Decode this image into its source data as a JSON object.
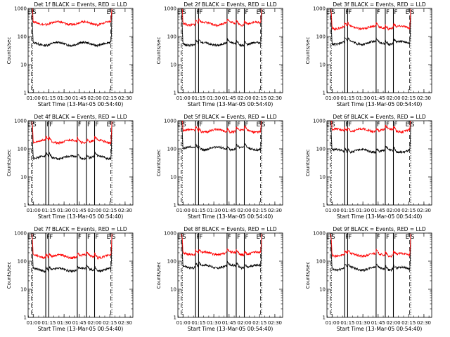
{
  "chart_data": [
    {
      "type": "line",
      "title": "Det 1f BLACK = Events, RED = LLD",
      "xlabel": "Start Time (13-Mar-05 00:54:40)",
      "ylabel": "Counts/sec",
      "x_ticks": [
        "01:00",
        "01:15",
        "01:30",
        "01:45",
        "02:00",
        "02:15",
        "02:30"
      ],
      "y_ticks": [
        "1",
        "10",
        "100",
        "1000"
      ],
      "y_scale": "log",
      "ylim": [
        1,
        1000
      ],
      "xlim": [
        "00:54:40",
        "02:37:40"
      ],
      "markers": [
        {
          "label": "E",
          "time": "00:58"
        },
        {
          "label": "S",
          "time": "00:59"
        },
        {
          "label": "E",
          "time": "02:16"
        },
        {
          "label": "S",
          "time": "02:17"
        }
      ],
      "series": [
        {
          "name": "Events",
          "color": "#000000",
          "level": 55
        },
        {
          "name": "LLD",
          "color": "#ff0000",
          "level": 300
        }
      ]
    },
    {
      "type": "line",
      "title": "Det 2f BLACK = Events, RED = LLD",
      "xlabel": "Start Time (13-Mar-05 00:54:40)",
      "ylabel": "Counts/sec",
      "x_ticks": [
        "01:00",
        "01:15",
        "01:30",
        "01:45",
        "02:00",
        "02:15",
        "02:30"
      ],
      "y_ticks": [
        "1",
        "10",
        "100",
        "1000"
      ],
      "y_scale": "log",
      "ylim": [
        1,
        1000
      ],
      "xlim": [
        "00:54:40",
        "02:37:40"
      ],
      "markers": [
        {
          "label": "E",
          "time": "00:58"
        },
        {
          "label": "S",
          "time": "00:59"
        },
        {
          "label": "F",
          "time": "01:12"
        },
        {
          "label": "F",
          "time": "01:15"
        },
        {
          "label": "F",
          "time": "01:43"
        },
        {
          "label": "F",
          "time": "01:52"
        },
        {
          "label": "F",
          "time": "02:00"
        },
        {
          "label": "E",
          "time": "02:16"
        },
        {
          "label": "S",
          "time": "02:17"
        }
      ],
      "series": [
        {
          "name": "Events",
          "color": "#000000",
          "level": 55
        },
        {
          "name": "LLD",
          "color": "#ff0000",
          "level": 290
        }
      ]
    },
    {
      "type": "line",
      "title": "Det 3f BLACK = Events, RED = LLD",
      "xlabel": "Start Time (13-Mar-05 00:54:40)",
      "ylabel": "Counts/sec",
      "x_ticks": [
        "01:00",
        "01:15",
        "01:30",
        "01:45",
        "02:00",
        "02:15",
        "02:30"
      ],
      "y_ticks": [
        "1",
        "10",
        "100",
        "1000"
      ],
      "y_scale": "log",
      "ylim": [
        1,
        1000
      ],
      "xlim": [
        "00:54:40",
        "02:37:40"
      ],
      "markers": [
        {
          "label": "E",
          "time": "00:58"
        },
        {
          "label": "S",
          "time": "00:59"
        },
        {
          "label": "F",
          "time": "01:12"
        },
        {
          "label": "F",
          "time": "01:15"
        },
        {
          "label": "F",
          "time": "01:43"
        },
        {
          "label": "F",
          "time": "01:52"
        },
        {
          "label": "F",
          "time": "02:00"
        },
        {
          "label": "E",
          "time": "02:16"
        },
        {
          "label": "S",
          "time": "02:17"
        }
      ],
      "series": [
        {
          "name": "Events",
          "color": "#000000",
          "level": 60
        },
        {
          "name": "LLD",
          "color": "#ff0000",
          "level": 210
        }
      ]
    },
    {
      "type": "line",
      "title": "Det 4f BLACK = Events, RED = LLD",
      "xlabel": "Start Time (13-Mar-05 00:54:40)",
      "ylabel": "Counts/sec",
      "x_ticks": [
        "01:00",
        "01:15",
        "01:30",
        "01:45",
        "02:00",
        "02:15",
        "02:30"
      ],
      "y_ticks": [
        "1",
        "10",
        "100",
        "1000"
      ],
      "y_scale": "log",
      "ylim": [
        1,
        1000
      ],
      "xlim": [
        "00:54:40",
        "02:37:40"
      ],
      "markers": [
        {
          "label": "E",
          "time": "00:58"
        },
        {
          "label": "S",
          "time": "00:59"
        },
        {
          "label": "F",
          "time": "01:12"
        },
        {
          "label": "F",
          "time": "01:15"
        },
        {
          "label": "F",
          "time": "01:43"
        },
        {
          "label": "F",
          "time": "01:52"
        },
        {
          "label": "F",
          "time": "02:00"
        },
        {
          "label": "E",
          "time": "02:16"
        },
        {
          "label": "S",
          "time": "02:17"
        }
      ],
      "series": [
        {
          "name": "Events",
          "color": "#000000",
          "level": 50
        },
        {
          "name": "LLD",
          "color": "#ff0000",
          "level": 185
        }
      ]
    },
    {
      "type": "line",
      "title": "Det 5f BLACK = Events, RED = LLD",
      "xlabel": "Start Time (13-Mar-05 00:54:40)",
      "ylabel": "Counts/sec",
      "x_ticks": [
        "01:00",
        "01:15",
        "01:30",
        "01:45",
        "02:00",
        "02:15",
        "02:30"
      ],
      "y_ticks": [
        "1",
        "10",
        "100",
        "1000"
      ],
      "y_scale": "log",
      "ylim": [
        1,
        1000
      ],
      "xlim": [
        "00:54:40",
        "02:37:40"
      ],
      "markers": [
        {
          "label": "E",
          "time": "00:58"
        },
        {
          "label": "S",
          "time": "00:59"
        },
        {
          "label": "F",
          "time": "01:12"
        },
        {
          "label": "F",
          "time": "01:15"
        },
        {
          "label": "F",
          "time": "01:43"
        },
        {
          "label": "F",
          "time": "01:52"
        },
        {
          "label": "F",
          "time": "02:00"
        },
        {
          "label": "E",
          "time": "02:16"
        },
        {
          "label": "S",
          "time": "02:17"
        }
      ],
      "series": [
        {
          "name": "Events",
          "color": "#000000",
          "level": 105
        },
        {
          "name": "LLD",
          "color": "#ff0000",
          "level": 440
        }
      ]
    },
    {
      "type": "line",
      "title": "Det 6f BLACK = Events, RED = LLD",
      "xlabel": "Start Time (13-Mar-05 00:54:40)",
      "ylabel": "Counts/sec",
      "x_ticks": [
        "01:00",
        "01:15",
        "01:30",
        "01:45",
        "02:00",
        "02:15",
        "02:30"
      ],
      "y_ticks": [
        "1",
        "10",
        "100",
        "1000"
      ],
      "y_scale": "log",
      "ylim": [
        1,
        1000
      ],
      "xlim": [
        "00:54:40",
        "02:37:40"
      ],
      "markers": [
        {
          "label": "E",
          "time": "00:58"
        },
        {
          "label": "S",
          "time": "00:59"
        },
        {
          "label": "F",
          "time": "01:12"
        },
        {
          "label": "F",
          "time": "01:15"
        },
        {
          "label": "F",
          "time": "01:43"
        },
        {
          "label": "F",
          "time": "01:52"
        },
        {
          "label": "F",
          "time": "02:00"
        },
        {
          "label": "E",
          "time": "02:16"
        },
        {
          "label": "S",
          "time": "02:17"
        }
      ],
      "series": [
        {
          "name": "Events",
          "color": "#000000",
          "level": 85
        },
        {
          "name": "LLD",
          "color": "#ff0000",
          "level": 460
        }
      ]
    },
    {
      "type": "line",
      "title": "Det 7f BLACK = Events, RED = LLD",
      "xlabel": "Start Time (13-Mar-05 00:54:40)",
      "ylabel": "Counts/sec",
      "x_ticks": [
        "01:00",
        "01:15",
        "01:30",
        "01:45",
        "02:00",
        "02:15",
        "02:30"
      ],
      "y_ticks": [
        "1",
        "10",
        "100",
        "1000"
      ],
      "y_scale": "log",
      "ylim": [
        1,
        1000
      ],
      "xlim": [
        "00:54:40",
        "02:37:40"
      ],
      "markers": [
        {
          "label": "E",
          "time": "00:58"
        },
        {
          "label": "S",
          "time": "00:59"
        },
        {
          "label": "F",
          "time": "01:12"
        },
        {
          "label": "F",
          "time": "01:15"
        },
        {
          "label": "F",
          "time": "01:43"
        },
        {
          "label": "F",
          "time": "01:52"
        },
        {
          "label": "F",
          "time": "02:00"
        },
        {
          "label": "E",
          "time": "02:16"
        },
        {
          "label": "S",
          "time": "02:17"
        }
      ],
      "series": [
        {
          "name": "Events",
          "color": "#000000",
          "level": 50
        },
        {
          "name": "LLD",
          "color": "#ff0000",
          "level": 150
        }
      ]
    },
    {
      "type": "line",
      "title": "Det 8f BLACK = Events, RED = LLD",
      "xlabel": "Start Time (13-Mar-05 00:54:40)",
      "ylabel": "Counts/sec",
      "x_ticks": [
        "01:00",
        "01:15",
        "01:30",
        "01:45",
        "02:00",
        "02:15",
        "02:30"
      ],
      "y_ticks": [
        "1",
        "10",
        "100",
        "1000"
      ],
      "y_scale": "log",
      "ylim": [
        1,
        1000
      ],
      "xlim": [
        "00:54:40",
        "02:37:40"
      ],
      "markers": [
        {
          "label": "E",
          "time": "00:58"
        },
        {
          "label": "S",
          "time": "00:59"
        },
        {
          "label": "F",
          "time": "01:12"
        },
        {
          "label": "F",
          "time": "01:15"
        },
        {
          "label": "F",
          "time": "01:43"
        },
        {
          "label": "F",
          "time": "01:52"
        },
        {
          "label": "F",
          "time": "02:00"
        },
        {
          "label": "E",
          "time": "02:16"
        },
        {
          "label": "S",
          "time": "02:17"
        }
      ],
      "series": [
        {
          "name": "Events",
          "color": "#000000",
          "level": 65
        },
        {
          "name": "LLD",
          "color": "#ff0000",
          "level": 190
        }
      ]
    },
    {
      "type": "line",
      "title": "Det 9f BLACK = Events, RED = LLD",
      "xlabel": "Start Time (13-Mar-05 00:54:40)",
      "ylabel": "Counts/sec",
      "x_ticks": [
        "01:00",
        "01:15",
        "01:30",
        "01:45",
        "02:00",
        "02:15",
        "02:30"
      ],
      "y_ticks": [
        "1",
        "10",
        "100",
        "1000"
      ],
      "y_scale": "log",
      "ylim": [
        1,
        1000
      ],
      "xlim": [
        "00:54:40",
        "02:37:40"
      ],
      "markers": [
        {
          "label": "E",
          "time": "00:58"
        },
        {
          "label": "S",
          "time": "00:59"
        },
        {
          "label": "F",
          "time": "01:12"
        },
        {
          "label": "F",
          "time": "01:15"
        },
        {
          "label": "F",
          "time": "01:43"
        },
        {
          "label": "F",
          "time": "01:52"
        },
        {
          "label": "F",
          "time": "02:00"
        },
        {
          "label": "E",
          "time": "02:16"
        },
        {
          "label": "S",
          "time": "02:17"
        }
      ],
      "series": [
        {
          "name": "Events",
          "color": "#000000",
          "level": 55
        },
        {
          "name": "LLD",
          "color": "#ff0000",
          "level": 170
        }
      ]
    }
  ]
}
